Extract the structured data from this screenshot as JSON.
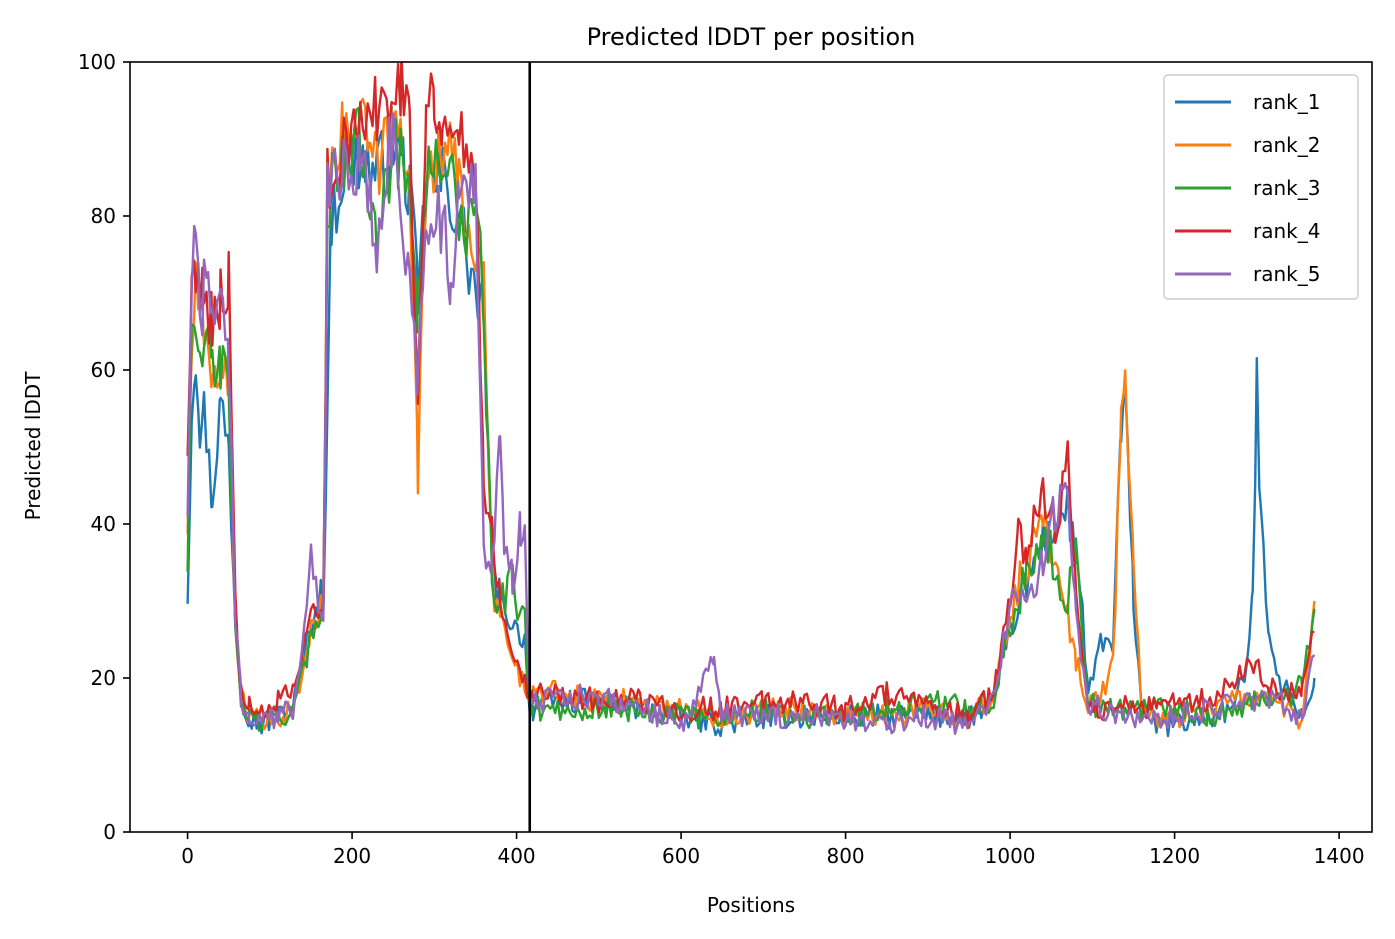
{
  "chart_data": {
    "type": "line",
    "title": "Predicted lDDT per position",
    "xlabel": "Positions",
    "ylabel": "Predicted lDDT",
    "xlim": [
      -70,
      1440
    ],
    "ylim": [
      0,
      100
    ],
    "xticks": [
      0,
      200,
      400,
      600,
      800,
      1000,
      1200,
      1400
    ],
    "yticks": [
      0,
      20,
      40,
      60,
      80,
      100
    ],
    "grid": false,
    "legend_position": "top-right",
    "vertical_lines": [
      416
    ],
    "series": [
      {
        "name": "rank_1",
        "color": "#1f77b4",
        "x": [
          0,
          5,
          10,
          15,
          20,
          30,
          40,
          50,
          58,
          65,
          75,
          90,
          110,
          130,
          150,
          165,
          175,
          190,
          210,
          230,
          250,
          270,
          280,
          290,
          310,
          330,
          350,
          360,
          370,
          380,
          395,
          410,
          416,
          420,
          450,
          500,
          550,
          600,
          650,
          700,
          750,
          800,
          850,
          900,
          950,
          980,
          1000,
          1020,
          1040,
          1055,
          1070,
          1085,
          1095,
          1110,
          1125,
          1135,
          1140,
          1150,
          1160,
          1180,
          1200,
          1240,
          1270,
          1285,
          1295,
          1300,
          1305,
          1315,
          1330,
          1345,
          1360,
          1370
        ],
        "y": [
          31,
          55,
          64,
          52,
          55,
          43,
          56,
          50,
          28,
          18,
          15,
          14,
          15,
          17,
          27,
          31,
          80,
          86,
          88,
          85,
          90,
          84,
          68,
          84,
          85,
          80,
          70,
          67,
          34,
          30,
          27,
          25,
          16,
          16,
          17,
          17,
          16,
          15,
          14,
          15,
          15,
          15,
          15,
          15,
          15,
          17,
          26,
          32,
          38,
          40,
          42,
          33,
          17,
          25,
          24,
          52,
          56,
          30,
          16,
          14,
          14,
          15,
          16,
          20,
          30,
          59,
          40,
          26,
          19,
          17,
          15,
          20
        ]
      },
      {
        "name": "rank_2",
        "color": "#ff7f0e",
        "x": [
          0,
          5,
          10,
          15,
          20,
          30,
          40,
          50,
          58,
          65,
          75,
          90,
          110,
          130,
          150,
          165,
          170,
          190,
          210,
          230,
          250,
          270,
          280,
          290,
          310,
          330,
          350,
          360,
          370,
          380,
          395,
          410,
          416,
          420,
          450,
          500,
          550,
          600,
          650,
          700,
          750,
          800,
          850,
          900,
          950,
          980,
          1000,
          1020,
          1040,
          1055,
          1070,
          1080,
          1095,
          1110,
          1125,
          1135,
          1140,
          1150,
          1160,
          1180,
          1200,
          1240,
          1270,
          1300,
          1330,
          1355,
          1370
        ],
        "y": [
          40,
          62,
          72,
          68,
          62,
          58,
          62,
          60,
          28,
          18,
          15,
          14,
          15,
          16,
          26,
          30,
          88,
          90,
          92,
          86,
          92,
          88,
          46,
          86,
          90,
          84,
          76,
          70,
          33,
          28,
          22,
          19,
          18,
          18,
          18,
          17,
          17,
          16,
          15,
          16,
          16,
          15,
          15,
          16,
          15,
          17,
          28,
          35,
          40,
          36,
          28,
          22,
          17,
          17,
          22,
          54,
          57,
          35,
          16,
          15,
          15,
          16,
          17,
          18,
          17,
          13,
          30
        ]
      },
      {
        "name": "rank_3",
        "color": "#2ca02c",
        "x": [
          0,
          5,
          10,
          15,
          20,
          30,
          40,
          50,
          58,
          65,
          75,
          90,
          110,
          130,
          150,
          165,
          170,
          190,
          210,
          230,
          250,
          270,
          280,
          290,
          310,
          330,
          350,
          360,
          370,
          380,
          395,
          410,
          416,
          420,
          450,
          500,
          550,
          600,
          650,
          700,
          750,
          800,
          850,
          900,
          950,
          980,
          1000,
          1020,
          1040,
          1055,
          1070,
          1080,
          1095,
          1110,
          1125,
          1140,
          1160,
          1180,
          1200,
          1240,
          1270,
          1300,
          1330,
          1355,
          1370
        ],
        "y": [
          35,
          64,
          66,
          60,
          64,
          60,
          62,
          58,
          26,
          17,
          15,
          14,
          15,
          16,
          25,
          30,
          82,
          88,
          90,
          80,
          88,
          86,
          68,
          84,
          88,
          80,
          78,
          70,
          32,
          30,
          32,
          28,
          16,
          16,
          16,
          16,
          16,
          15,
          15,
          16,
          15,
          15,
          16,
          17,
          16,
          17,
          27,
          33,
          40,
          34,
          30,
          36,
          17,
          16,
          16,
          16,
          16,
          17,
          16,
          15,
          16,
          17,
          17,
          19,
          29
        ]
      },
      {
        "name": "rank_4",
        "color": "#d62728",
        "x": [
          0,
          5,
          10,
          15,
          20,
          30,
          40,
          50,
          58,
          65,
          75,
          90,
          110,
          130,
          150,
          165,
          170,
          190,
          210,
          230,
          250,
          260,
          270,
          280,
          290,
          300,
          310,
          330,
          350,
          360,
          370,
          380,
          395,
          410,
          416,
          420,
          450,
          500,
          550,
          600,
          650,
          700,
          750,
          800,
          850,
          900,
          950,
          980,
          1000,
          1010,
          1020,
          1040,
          1055,
          1070,
          1080,
          1095,
          1110,
          1125,
          1140,
          1160,
          1180,
          1200,
          1240,
          1270,
          1290,
          1310,
          1330,
          1355,
          1370
        ],
        "y": [
          50,
          68,
          75,
          70,
          72,
          66,
          70,
          72,
          30,
          18,
          16,
          15,
          17,
          18,
          28,
          32,
          84,
          88,
          92,
          94,
          97,
          97,
          95,
          56,
          94,
          96,
          92,
          90,
          88,
          45,
          40,
          30,
          24,
          20,
          18,
          18,
          18,
          17,
          17,
          16,
          16,
          17,
          17,
          16,
          18,
          16,
          15,
          18,
          30,
          40,
          36,
          44,
          40,
          48,
          30,
          17,
          16,
          16,
          17,
          16,
          16,
          17,
          17,
          19,
          22,
          20,
          18,
          18,
          26
        ]
      },
      {
        "name": "rank_5",
        "color": "#9467bd",
        "x": [
          0,
          5,
          10,
          15,
          20,
          25,
          30,
          40,
          50,
          58,
          65,
          75,
          90,
          110,
          130,
          150,
          165,
          170,
          190,
          210,
          230,
          250,
          270,
          280,
          290,
          310,
          320,
          330,
          350,
          360,
          370,
          380,
          385,
          395,
          405,
          410,
          416,
          420,
          450,
          500,
          550,
          600,
          640,
          650,
          700,
          750,
          800,
          850,
          900,
          950,
          980,
          1000,
          1020,
          1040,
          1055,
          1070,
          1080,
          1095,
          1110,
          1125,
          1140,
          1160,
          1180,
          1200,
          1240,
          1270,
          1300,
          1330,
          1355,
          1370
        ],
        "y": [
          42,
          74,
          76,
          66,
          70,
          77,
          68,
          70,
          62,
          28,
          17,
          15,
          14,
          15,
          16,
          36,
          28,
          84,
          86,
          88,
          76,
          92,
          70,
          60,
          80,
          80,
          68,
          82,
          86,
          38,
          35,
          50,
          36,
          32,
          40,
          38,
          17,
          17,
          17,
          18,
          16,
          14,
          22,
          15,
          15,
          15,
          15,
          14,
          15,
          14,
          17,
          30,
          30,
          36,
          42,
          46,
          28,
          17,
          16,
          15,
          15,
          15,
          15,
          15,
          16,
          17,
          17,
          17,
          15,
          23
        ]
      }
    ]
  }
}
